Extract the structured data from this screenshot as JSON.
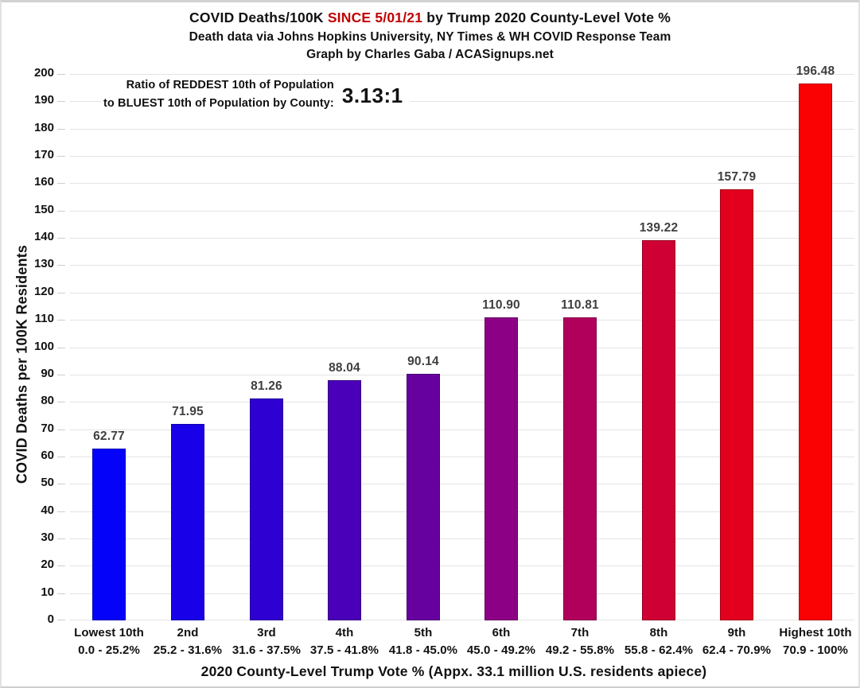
{
  "title": {
    "part1": "COVID Deaths/100K ",
    "highlight": "SINCE 5/01/21",
    "part2": " by Trump 2020 County-Level Vote %",
    "highlight_color": "#c00000",
    "subtitle1": "Death data via Johns Hopkins University, NY Times & WH COVID Response Team",
    "subtitle2": "Graph by Charles Gaba / ACASignups.net"
  },
  "annotation": {
    "line1": "Ratio of REDDEST 10th of Population",
    "line2": "to BLUEST 10th of Population by County:",
    "ratio": "3.13:1"
  },
  "chart_data": {
    "type": "bar",
    "title": "COVID Deaths/100K SINCE 5/01/21 by Trump 2020 County-Level Vote %",
    "xlabel": "2020 County-Level Trump Vote % (Appx. 33.1 million U.S. residents apiece)",
    "ylabel": "COVID Deaths per 100K Residents",
    "ylim": [
      0,
      200
    ],
    "ytick_step": 10,
    "grid": true,
    "legend": false,
    "categories": [
      {
        "line1": "Lowest 10th",
        "line2": "0.0 - 25.2%"
      },
      {
        "line1": "2nd",
        "line2": "25.2 - 31.6%"
      },
      {
        "line1": "3rd",
        "line2": "31.6 - 37.5%"
      },
      {
        "line1": "4th",
        "line2": "37.5 - 41.8%"
      },
      {
        "line1": "5th",
        "line2": "41.8 - 45.0%"
      },
      {
        "line1": "6th",
        "line2": "45.0 - 49.2%"
      },
      {
        "line1": "7th",
        "line2": "49.2 - 55.8%"
      },
      {
        "line1": "8th",
        "line2": "55.8 - 62.4%"
      },
      {
        "line1": "9th",
        "line2": "62.4 - 70.9%"
      },
      {
        "line1": "Highest 10th",
        "line2": "70.9 - 100%"
      }
    ],
    "values": [
      62.77,
      71.95,
      81.26,
      88.04,
      90.14,
      110.9,
      110.81,
      139.22,
      157.79,
      196.48
    ],
    "value_labels": [
      "62.77",
      "71.95",
      "81.26",
      "88.04",
      "90.14",
      "110.90",
      "110.81",
      "139.22",
      "157.79",
      "196.48"
    ],
    "bar_colors": [
      "#0502f9",
      "#1800e9",
      "#2f00d2",
      "#4a00b8",
      "#66009e",
      "#8c0086",
      "#b0005c",
      "#cf0033",
      "#e2001e",
      "#fa0104"
    ],
    "value_label_color": "#3f3f3f",
    "gridline_color": "#e4e4e4"
  }
}
